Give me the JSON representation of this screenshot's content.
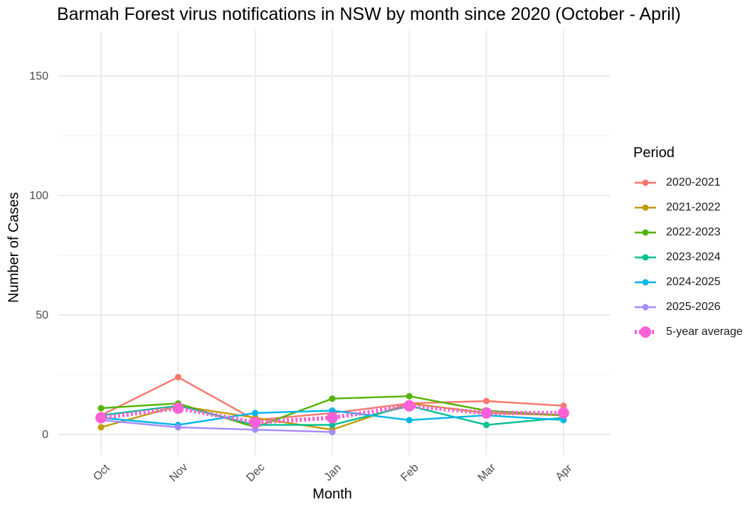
{
  "chart_data": {
    "type": "line",
    "title": "Barmah Forest virus notifications in NSW by month since 2020 (October - April)",
    "xlabel": "Month",
    "ylabel": "Number of Cases",
    "categories": [
      "Oct",
      "Nov",
      "Dec",
      "Jan",
      "Feb",
      "Mar",
      "Apr"
    ],
    "ylim": [
      -8,
      162
    ],
    "yticks": [
      0,
      50,
      100,
      150
    ],
    "grid": true,
    "legend": {
      "title": "Period",
      "position": "right"
    },
    "series": [
      {
        "name": "2020-2021",
        "color": "#F8766D",
        "values": [
          8,
          24,
          6,
          9,
          13,
          14,
          12
        ]
      },
      {
        "name": "2021-2022",
        "color": "#C49A00",
        "values": [
          3,
          12,
          7,
          2,
          13,
          9,
          8
        ]
      },
      {
        "name": "2022-2023",
        "color": "#53B400",
        "values": [
          11,
          13,
          3,
          15,
          16,
          10,
          8
        ]
      },
      {
        "name": "2023-2024",
        "color": "#00C094",
        "values": [
          8,
          12,
          4,
          4,
          12,
          4,
          7
        ]
      },
      {
        "name": "2024-2025",
        "color": "#00B6EB",
        "values": [
          7,
          4,
          9,
          10,
          6,
          8,
          6
        ]
      },
      {
        "name": "2025-2026",
        "color": "#A58AFF",
        "values": [
          6,
          3,
          2,
          1,
          null,
          null,
          null
        ]
      },
      {
        "name": "5-year average",
        "color": "#FB61D7",
        "style": "dotted",
        "values": [
          7,
          11,
          5,
          7,
          12,
          9,
          9
        ]
      }
    ]
  }
}
